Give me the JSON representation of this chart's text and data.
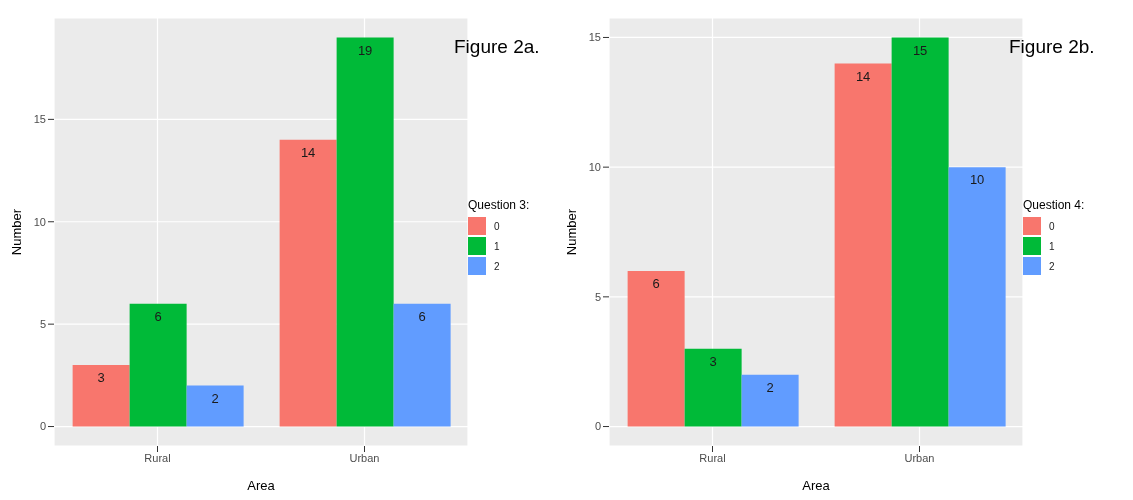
{
  "chart_data": [
    {
      "type": "bar",
      "title": "Figure 2a.",
      "xlabel": "Area",
      "ylabel": "Number",
      "legend_title": "Question 3:",
      "categories": [
        "Rural",
        "Urban"
      ],
      "series": [
        {
          "name": "0",
          "color": "#f8766d",
          "values": [
            3,
            14
          ]
        },
        {
          "name": "1",
          "color": "#00ba38",
          "values": [
            6,
            19
          ]
        },
        {
          "name": "2",
          "color": "#619cff",
          "values": [
            2,
            6
          ]
        }
      ],
      "ylim": [
        -0.95,
        19.95
      ],
      "yticks": [
        0,
        5,
        10,
        15
      ],
      "grid": true,
      "legend": "right",
      "data_labels": true
    },
    {
      "type": "bar",
      "title": "Figure 2b.",
      "xlabel": "Area",
      "ylabel": "Number",
      "legend_title": "Question 4:",
      "categories": [
        "Rural",
        "Urban"
      ],
      "series": [
        {
          "name": "0",
          "color": "#f8766d",
          "values": [
            6,
            14
          ]
        },
        {
          "name": "1",
          "color": "#00ba38",
          "values": [
            3,
            15
          ]
        },
        {
          "name": "2",
          "color": "#619cff",
          "values": [
            2,
            10
          ]
        }
      ],
      "ylim": [
        -0.75,
        15.75
      ],
      "yticks": [
        0,
        5,
        10,
        15
      ],
      "grid": true,
      "legend": "right",
      "data_labels": true
    }
  ]
}
